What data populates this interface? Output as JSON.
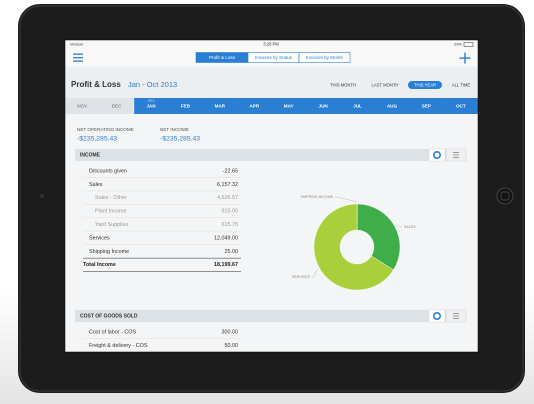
{
  "status_bar": {
    "carrier": "Verizon",
    "time": "3:20 PM",
    "battery": "29%"
  },
  "nav": {
    "tabs": [
      "Profit & Loss",
      "Invoices by Status",
      "Invoices by Month"
    ],
    "active_tab": 0
  },
  "header": {
    "title": "Profit & Loss",
    "period": "Jan - Oct 2013",
    "filters": [
      "THIS MONTH",
      "LAST MONTH",
      "THIS YEAR",
      "ALL TIME"
    ],
    "active_filter": 2
  },
  "months": {
    "year": "2013",
    "labels": [
      "NOV",
      "DEC",
      "JAN",
      "FEB",
      "MAR",
      "APR",
      "MAY",
      "JUN",
      "JUL",
      "AUG",
      "SEP",
      "OCT"
    ],
    "active_from": 2
  },
  "summary": [
    {
      "label": "NET OPERATING INCOME",
      "value": "-$235,285.43"
    },
    {
      "label": "NET INCOME",
      "value": "-$235,285.43"
    }
  ],
  "income": {
    "title": "INCOME",
    "rows": [
      {
        "name": "Discounts given",
        "amount": "-22.65",
        "level": 0
      },
      {
        "name": "Sales",
        "amount": "6,157.32",
        "level": 0
      },
      {
        "name": "Sales - Other",
        "amount": "4,626.57",
        "level": 1
      },
      {
        "name": "Plant Income",
        "amount": "915.00",
        "level": 1
      },
      {
        "name": "Yard Supplies",
        "amount": "615.75",
        "level": 1
      },
      {
        "name": "Services",
        "amount": "12,049.00",
        "level": 0
      },
      {
        "name": "Shipping Income",
        "amount": "25.00",
        "level": 0
      }
    ],
    "total": {
      "name": "Total Income",
      "amount": "18,199.67"
    }
  },
  "income_chart": {
    "type": "pie",
    "labels": [
      "SHIPPING INCOME",
      "SALES",
      "SERVICES"
    ],
    "values": [
      25.0,
      6157.32,
      12049.0
    ],
    "colors": [
      "#2f7d3a",
      "#3fae4a",
      "#a9cf3a"
    ]
  },
  "cost_of_goods_sold": {
    "title": "COST OF GOODS SOLD",
    "rows": [
      {
        "name": "Cost of labor - COS",
        "amount": "300.00",
        "level": 0
      },
      {
        "name": "Freight & delivery - COS",
        "amount": "50.00",
        "level": 0
      }
    ]
  }
}
